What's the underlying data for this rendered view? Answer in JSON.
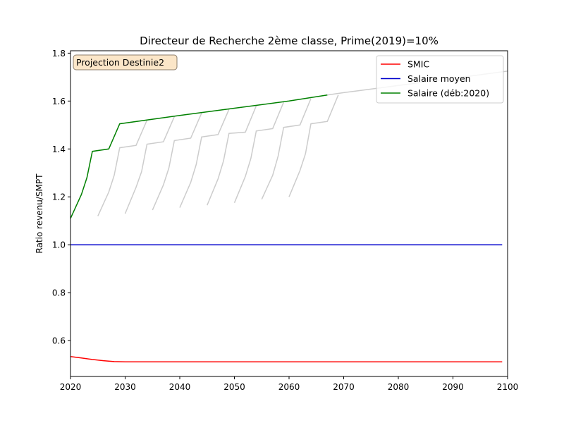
{
  "chart_data": {
    "type": "line",
    "title": "Directeur de Recherche 2ème classe, Prime(2019)=10%",
    "xlabel": "",
    "ylabel": "Ratio revenu/SMPT",
    "xlim": [
      2020,
      2100
    ],
    "ylim": [
      0.45,
      1.81
    ],
    "xticks": [
      2020,
      2030,
      2040,
      2050,
      2060,
      2070,
      2080,
      2090,
      2100
    ],
    "yticks": [
      0.6,
      0.8,
      1.0,
      1.2,
      1.4,
      1.6,
      1.8
    ],
    "grid": false,
    "legend_position": "top-right",
    "annotation": "Projection Destinie2",
    "series": [
      {
        "name": "SMIC",
        "color": "#ff0000",
        "x": [
          2020,
          2022,
          2024,
          2026,
          2028,
          2030,
          2040,
          2050,
          2060,
          2070,
          2080,
          2090,
          2099
        ],
        "y": [
          0.533,
          0.527,
          0.521,
          0.516,
          0.512,
          0.511,
          0.511,
          0.511,
          0.511,
          0.511,
          0.511,
          0.511,
          0.511
        ]
      },
      {
        "name": "Salaire moyen",
        "color": "#0000cc",
        "x": [
          2020,
          2099
        ],
        "y": [
          1.0,
          1.0
        ]
      },
      {
        "name": "Salaire (déb:2020)",
        "color": "#008000",
        "x": [
          2020,
          2022,
          2023,
          2024,
          2027,
          2029,
          2040,
          2050,
          2060,
          2067
        ],
        "y": [
          1.11,
          1.21,
          1.28,
          1.39,
          1.4,
          1.505,
          1.54,
          1.57,
          1.6,
          1.625
        ]
      }
    ],
    "background_series": [
      {
        "color": "#cccccc",
        "x": [
          2025,
          2027,
          2028,
          2029,
          2032,
          2034
        ],
        "y": [
          1.12,
          1.22,
          1.29,
          1.405,
          1.415,
          1.52
        ]
      },
      {
        "color": "#cccccc",
        "x": [
          2030,
          2032,
          2033,
          2034,
          2037,
          2039
        ],
        "y": [
          1.13,
          1.24,
          1.305,
          1.42,
          1.43,
          1.535
        ]
      },
      {
        "color": "#cccccc",
        "x": [
          2035,
          2037,
          2038,
          2039,
          2042,
          2044
        ],
        "y": [
          1.145,
          1.25,
          1.32,
          1.435,
          1.445,
          1.55
        ]
      },
      {
        "color": "#cccccc",
        "x": [
          2040,
          2042,
          2043,
          2044,
          2047,
          2049
        ],
        "y": [
          1.155,
          1.26,
          1.335,
          1.45,
          1.46,
          1.565
        ]
      },
      {
        "color": "#cccccc",
        "x": [
          2045,
          2047,
          2048,
          2049,
          2052,
          2054
        ],
        "y": [
          1.165,
          1.275,
          1.35,
          1.465,
          1.47,
          1.58
        ]
      },
      {
        "color": "#cccccc",
        "x": [
          2050,
          2052,
          2053,
          2054,
          2057,
          2059
        ],
        "y": [
          1.175,
          1.285,
          1.36,
          1.475,
          1.485,
          1.595
        ]
      },
      {
        "color": "#cccccc",
        "x": [
          2055,
          2057,
          2058,
          2059,
          2062,
          2064
        ],
        "y": [
          1.19,
          1.29,
          1.37,
          1.49,
          1.5,
          1.61
        ]
      },
      {
        "color": "#cccccc",
        "x": [
          2060,
          2062,
          2063,
          2064,
          2067,
          2069
        ],
        "y": [
          1.2,
          1.31,
          1.38,
          1.505,
          1.515,
          1.625
        ]
      },
      {
        "color": "#cccccc",
        "x": [
          2067,
          2070,
          2080,
          2090,
          2100
        ],
        "y": [
          1.625,
          1.635,
          1.665,
          1.695,
          1.725
        ]
      }
    ]
  }
}
